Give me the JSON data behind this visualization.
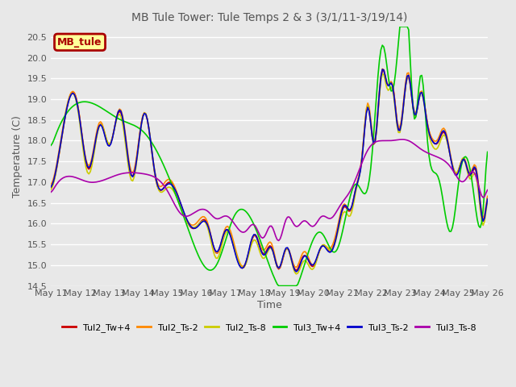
{
  "title": "MB Tule Tower: Tule Temps 2 & 3 (3/1/11-3/19/14)",
  "xlabel": "Time",
  "ylabel": "Temperature (C)",
  "ylim": [
    14.5,
    20.75
  ],
  "yticks": [
    14.5,
    15.0,
    15.5,
    16.0,
    16.5,
    17.0,
    17.5,
    18.0,
    18.5,
    19.0,
    19.5,
    20.0,
    20.5
  ],
  "background_color": "#e8e8e8",
  "plot_bg_color": "#e8e8e8",
  "grid_color": "#ffffff",
  "legend_label": "MB_tule",
  "legend_bg": "#ffff99",
  "legend_border": "#aa0000",
  "series": [
    {
      "label": "Tul2_Tw+4",
      "color": "#cc0000"
    },
    {
      "label": "Tul2_Ts-2",
      "color": "#ff8800"
    },
    {
      "label": "Tul2_Ts-8",
      "color": "#cccc00"
    },
    {
      "label": "Tul3_Tw+4",
      "color": "#00cc00"
    },
    {
      "label": "Tul3_Ts-2",
      "color": "#0000cc"
    },
    {
      "label": "Tul3_Ts-8",
      "color": "#aa00aa"
    }
  ],
  "xtick_labels": [
    "May 11",
    "May 12",
    "May 13",
    "May 14",
    "May 15",
    "May 16",
    "May 17",
    "May 18",
    "May 19",
    "May 20",
    "May 21",
    "May 22",
    "May 23",
    "May 24",
    "May 25",
    "May 26"
  ],
  "n_points": 300
}
